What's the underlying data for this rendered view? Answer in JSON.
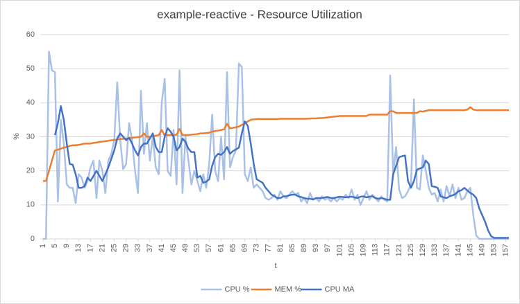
{
  "chart_data": {
    "type": "line",
    "title": "example-reactive - Resource Utilization",
    "xlabel": "t",
    "ylabel": "%",
    "x": [
      1,
      2,
      3,
      4,
      5,
      6,
      7,
      8,
      9,
      10,
      11,
      12,
      13,
      14,
      15,
      16,
      17,
      18,
      19,
      20,
      21,
      22,
      23,
      24,
      25,
      26,
      27,
      28,
      29,
      30,
      31,
      32,
      33,
      34,
      35,
      36,
      37,
      38,
      39,
      40,
      41,
      42,
      43,
      44,
      45,
      46,
      47,
      48,
      49,
      50,
      51,
      52,
      53,
      54,
      55,
      56,
      57,
      58,
      59,
      60,
      61,
      62,
      63,
      64,
      65,
      66,
      67,
      68,
      69,
      70,
      71,
      72,
      73,
      74,
      75,
      76,
      77,
      78,
      79,
      80,
      81,
      82,
      83,
      84,
      85,
      86,
      87,
      88,
      89,
      90,
      91,
      92,
      93,
      94,
      95,
      96,
      97,
      98,
      99,
      100,
      101,
      102,
      103,
      104,
      105,
      106,
      107,
      108,
      109,
      110,
      111,
      112,
      113,
      114,
      115,
      116,
      117,
      118,
      119,
      120,
      121,
      122,
      123,
      124,
      125,
      126,
      127,
      128,
      129,
      130,
      131,
      132,
      133,
      134,
      135,
      136,
      137,
      138,
      139,
      140,
      141,
      142,
      143,
      144,
      145,
      146,
      147,
      148,
      149,
      150,
      151,
      152,
      153,
      154,
      155,
      156,
      157,
      158
    ],
    "xlim": [
      1,
      158
    ],
    "xticks": [
      1,
      5,
      9,
      13,
      17,
      21,
      25,
      29,
      33,
      37,
      41,
      45,
      49,
      53,
      57,
      61,
      65,
      69,
      73,
      77,
      81,
      85,
      89,
      93,
      97,
      101,
      105,
      109,
      113,
      117,
      121,
      125,
      129,
      133,
      137,
      141,
      145,
      149,
      153,
      157
    ],
    "ylim": [
      0,
      60
    ],
    "yticks": [
      0,
      10,
      20,
      30,
      40,
      50,
      60
    ],
    "grid": true,
    "legend": "bottom",
    "series": [
      {
        "name": "CPU %",
        "color": "#a9c1e6",
        "values": [
          0,
          0,
          55,
          49.5,
          49,
          11,
          35,
          28,
          16,
          15,
          15,
          10.5,
          19,
          18,
          15,
          17,
          21,
          23,
          12,
          23,
          20,
          13.5,
          23,
          25,
          29,
          46,
          29,
          20.5,
          22,
          34,
          29,
          20,
          13.5,
          43.5,
          25,
          34,
          23,
          30,
          21,
          19,
          40,
          47,
          20,
          18.5,
          32,
          16,
          49.5,
          13.5,
          30,
          23,
          16,
          20,
          17,
          14,
          19,
          15,
          22,
          36.5,
          20,
          17,
          30,
          17.5,
          49,
          21,
          24,
          26,
          51.5,
          50.5,
          19,
          17,
          21,
          15,
          16,
          15,
          14,
          12,
          11.5,
          12,
          13,
          11.5,
          14,
          12.5,
          12,
          13,
          14,
          13,
          13.5,
          11,
          12,
          10.5,
          13.5,
          11.5,
          12,
          11,
          12.5,
          11.5,
          12,
          11,
          12,
          11,
          12,
          11.5,
          13,
          12,
          14.5,
          11.5,
          13,
          10,
          12,
          14,
          11.5,
          13,
          12,
          11,
          12.5,
          11.5,
          11,
          48,
          19,
          27,
          14.5,
          12,
          12.5,
          14,
          16,
          41,
          15,
          14.5,
          24.5,
          20,
          15,
          13,
          13.5,
          11,
          14.5,
          11,
          15.5,
          12.5,
          16,
          12,
          15,
          11.5,
          12,
          14,
          15,
          7,
          1,
          0,
          0,
          0,
          0,
          0,
          0,
          0,
          0,
          0,
          0,
          0
        ]
      },
      {
        "name": "MEM %",
        "color": "#ed7d31",
        "values": [
          17,
          17,
          20,
          23,
          26,
          26.2,
          26.5,
          26.8,
          27,
          27.3,
          27.5,
          27.5,
          27.6,
          27.8,
          28,
          28,
          28,
          28.2,
          28.3,
          28.5,
          28.6,
          28.7,
          28.8,
          29,
          29,
          29.2,
          29.3,
          29.4,
          29.5,
          29.6,
          29.7,
          29.8,
          29.9,
          30,
          31,
          30,
          30,
          30.2,
          30.3,
          30.5,
          32,
          30.4,
          30.5,
          30.5,
          30.5,
          30.6,
          32.3,
          30.5,
          30.5,
          30.5,
          30.6,
          30.7,
          30.8,
          31,
          31,
          31.1,
          31.2,
          31.5,
          31.7,
          31.8,
          32,
          32.2,
          33.8,
          32.5,
          32.6,
          32.8,
          33,
          33.5,
          34,
          34.5,
          35,
          35.1,
          35.2,
          35.2,
          35.2,
          35.2,
          35.2,
          35.2,
          35.2,
          35.2,
          35.3,
          35.3,
          35.3,
          35.3,
          35.3,
          35.3,
          35.3,
          35.3,
          35.3,
          35.3,
          35.4,
          35.4,
          35.4,
          35.5,
          35.5,
          35.6,
          35.7,
          35.8,
          35.9,
          36,
          36.1,
          36.1,
          36.1,
          36.1,
          36.1,
          36.1,
          36.1,
          36.1,
          36.1,
          36.1,
          36.5,
          36.5,
          36.5,
          36.5,
          36.5,
          36.5,
          36.5,
          37.5,
          37.5,
          37,
          37,
          37,
          37,
          37,
          37,
          37,
          37,
          37.5,
          37.4,
          37.6,
          37.8,
          37.8,
          37.8,
          37.8,
          37.8,
          37.8,
          37.8,
          37.8,
          37.8,
          37.8,
          37.8,
          37.8,
          37.8,
          38,
          38.7,
          38,
          37.8,
          37.8,
          37.8,
          37.8,
          37.8,
          37.8,
          37.8,
          37.8,
          37.8,
          37.8,
          37.8,
          37.8
        ]
      },
      {
        "name": "CPU MA",
        "color": "#4472c4",
        "values": [
          null,
          null,
          null,
          null,
          30.5,
          34,
          39,
          35,
          28,
          22,
          21.8,
          19,
          15,
          15,
          15.5,
          18,
          17,
          18.5,
          20,
          18.5,
          17,
          19,
          21,
          23.5,
          26,
          29.5,
          31,
          30,
          29,
          29.7,
          28,
          26,
          24.5,
          27,
          28,
          28,
          29.5,
          31,
          27,
          25.5,
          25.5,
          30,
          32.5,
          31.5,
          30,
          26,
          27,
          29.5,
          28.5,
          26.5,
          25.5,
          25.5,
          18,
          18.5,
          16.5,
          16.8,
          17.5,
          21.5,
          24,
          25,
          24.7,
          25.5,
          27,
          25,
          25.8,
          26.3,
          26.8,
          31,
          34.5,
          33.2,
          28,
          22,
          17.5,
          17,
          16.5,
          15,
          14,
          13,
          12.5,
          12,
          12,
          12.5,
          12.5,
          12.8,
          13,
          13,
          12.5,
          12.3,
          12,
          11.8,
          11.8,
          11.6,
          12,
          12,
          12,
          12.2,
          12.3,
          12,
          12,
          12.2,
          12.4,
          12.3,
          12.2,
          12.3,
          12.4,
          12.2,
          12,
          12.4,
          12.5,
          12.2,
          12.4,
          12.5,
          12,
          11.8,
          12,
          11.8,
          11.5,
          11.5,
          19,
          21.5,
          24,
          24.3,
          24.5,
          17,
          15,
          17,
          20.3,
          20.7,
          21,
          23,
          22,
          15.5,
          15.3,
          15,
          12.5,
          12.2,
          12,
          12.5,
          12.8,
          13.2,
          14,
          14.3,
          15,
          14.2,
          13.5,
          13,
          12,
          9,
          7,
          5,
          2.5,
          0.8,
          0.3,
          0.3,
          0.3,
          0.3,
          0.3,
          0.3
        ]
      }
    ]
  }
}
